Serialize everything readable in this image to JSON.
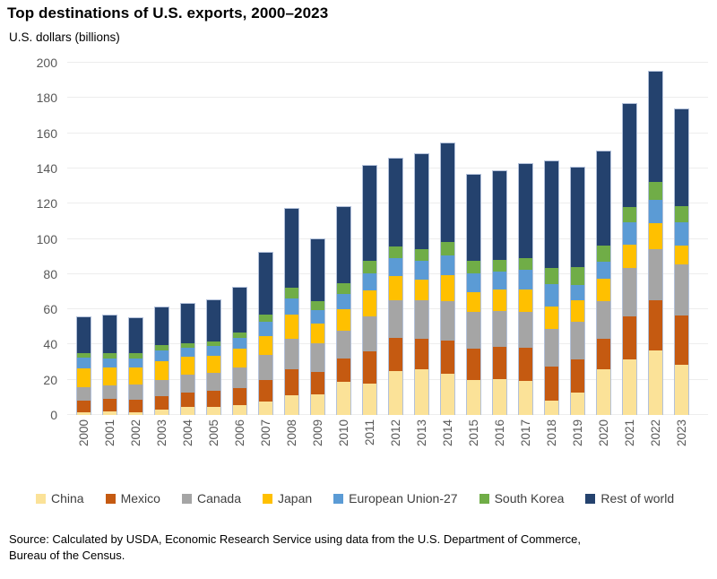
{
  "header": {
    "title": "Top destinations of U.S. exports, 2000–2023",
    "subtitle": "U.S. dollars (billions)"
  },
  "source": {
    "line1": "Source: Calculated by USDA, Economic Research Service using data from the U.S. Department of Commerce,",
    "line2": "Bureau of the Census."
  },
  "chart_data": {
    "type": "bar",
    "stacked": true,
    "title": "Top destinations of U.S. exports, 2000–2023",
    "ylabel": "U.S. dollars (billions)",
    "xlabel": "",
    "unit": "billion U.S. dollars",
    "ylim": [
      0,
      200
    ],
    "ytick_step": 20,
    "grid": true,
    "legend_position": "bottom",
    "axis_label_color": "#595959",
    "categories": [
      "2000",
      "2001",
      "2002",
      "2003",
      "2004",
      "2005",
      "2006",
      "2007",
      "2008",
      "2009",
      "2010",
      "2011",
      "2012",
      "2013",
      "2014",
      "2015",
      "2016",
      "2017",
      "2018",
      "2019",
      "2020",
      "2021",
      "2022",
      "2023"
    ],
    "series": [
      {
        "name": "China",
        "color": "#FBE298",
        "values": [
          1.7,
          2.0,
          1.8,
          3.0,
          4.5,
          4.4,
          5.4,
          7.5,
          11.0,
          12.0,
          19.0,
          18.0,
          25.0,
          25.8,
          23.7,
          19.7,
          20.5,
          19.3,
          8.1,
          13.0,
          25.8,
          31.5,
          36.7,
          28.5
        ]
      },
      {
        "name": "Mexico",
        "color": "#C55A11",
        "values": [
          6.3,
          7.0,
          7.1,
          8.0,
          8.5,
          9.4,
          10.0,
          12.3,
          14.9,
          12.5,
          13.0,
          18.5,
          18.8,
          17.5,
          18.8,
          18.3,
          18.2,
          19.0,
          19.5,
          18.5,
          17.8,
          24.6,
          28.6,
          28.4
        ]
      },
      {
        "name": "Canada",
        "color": "#A5A5A5",
        "values": [
          7.7,
          8.0,
          8.6,
          9.2,
          9.9,
          10.3,
          12.0,
          14.7,
          17.7,
          16.6,
          16.3,
          19.9,
          21.7,
          22.1,
          22.5,
          20.7,
          20.6,
          20.6,
          21.6,
          21.5,
          21.2,
          27.7,
          28.9,
          28.6
        ]
      },
      {
        "name": "Japan",
        "color": "#FFC000",
        "values": [
          11.1,
          10.0,
          9.8,
          10.4,
          10.4,
          9.8,
          10.3,
          10.5,
          13.9,
          10.9,
          11.9,
          14.6,
          13.6,
          11.8,
          14.5,
          11.2,
          12.0,
          12.7,
          12.8,
          12.5,
          12.8,
          13.0,
          14.8,
          10.8
        ]
      },
      {
        "name": "European Union-27",
        "color": "#5B9BD5",
        "values": [
          6.0,
          5.3,
          5.1,
          6.2,
          5.1,
          5.5,
          6.2,
          8.0,
          9.0,
          7.8,
          9.0,
          9.7,
          10.3,
          10.6,
          11.2,
          10.8,
          10.3,
          10.9,
          12.5,
          8.8,
          9.7,
          12.8,
          13.6,
          13.2
        ]
      },
      {
        "name": "South Korea",
        "color": "#70AD47",
        "values": [
          2.9,
          3.2,
          3.0,
          3.1,
          2.9,
          2.7,
          3.1,
          4.1,
          6.2,
          5.0,
          5.7,
          7.2,
          6.5,
          6.6,
          7.7,
          7.2,
          7.0,
          6.9,
          9.5,
          10.0,
          9.0,
          9.0,
          10.2,
          9.3
        ]
      },
      {
        "name": "Rest of world",
        "color": "#24426E",
        "values": [
          20.3,
          21.5,
          20.1,
          21.6,
          22.2,
          23.4,
          26.0,
          35.4,
          44.8,
          35.7,
          43.6,
          54.1,
          50.1,
          54.1,
          56.1,
          49.1,
          50.4,
          53.6,
          60.5,
          56.7,
          53.7,
          58.4,
          62.7,
          55.2
        ]
      }
    ],
    "totals": [
      56.0,
      57.0,
      55.5,
      61.5,
      63.5,
      65.5,
      73.0,
      92.5,
      117.5,
      100.5,
      118.5,
      142.0,
      146.0,
      148.5,
      154.5,
      137.0,
      139.0,
      143.0,
      144.5,
      141.0,
      150.0,
      177.0,
      195.5,
      174.0
    ]
  }
}
